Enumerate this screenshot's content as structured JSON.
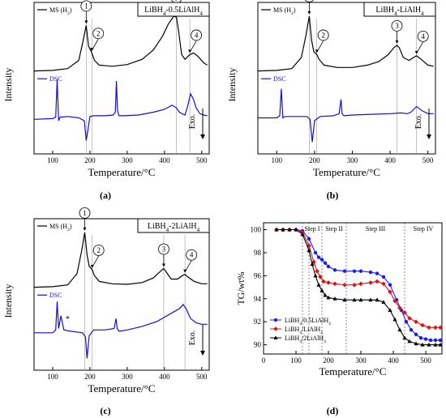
{
  "chart_data": [
    {
      "type": "line",
      "panel": "(a)",
      "title": "LiBH4-0.5LiAlH4",
      "xlabel": "Temperature/°C",
      "ylabel": "Intensity",
      "xlim": [
        50,
        520
      ],
      "xticks": [
        100,
        200,
        300,
        400,
        500
      ],
      "series": [
        {
          "name": "MS (H2)",
          "color": "#000000",
          "x": [
            50,
            100,
            140,
            170,
            182,
            190,
            196,
            205,
            212,
            225,
            260,
            300,
            340,
            370,
            395,
            410,
            425,
            432,
            438,
            446,
            455,
            468,
            478,
            490,
            505,
            515
          ],
          "y": [
            0.02,
            0.03,
            0.06,
            0.2,
            0.55,
            0.8,
            0.45,
            0.33,
            0.2,
            0.12,
            0.1,
            0.13,
            0.22,
            0.38,
            0.62,
            0.82,
            0.96,
            0.94,
            0.7,
            0.3,
            0.22,
            0.3,
            0.33,
            0.27,
            0.16,
            0.12
          ]
        },
        {
          "name": "DSC",
          "color": "#1010d0",
          "x": [
            50,
            100,
            108,
            112,
            116,
            120,
            140,
            170,
            185,
            190,
            195,
            200,
            210,
            240,
            262,
            268,
            271,
            274,
            278,
            290,
            330,
            370,
            400,
            420,
            432,
            440,
            455,
            462,
            470,
            478,
            485,
            495,
            505,
            515
          ],
          "y": [
            0.42,
            0.43,
            0.45,
            0.98,
            0.4,
            0.45,
            0.46,
            0.44,
            0.4,
            0.12,
            0.28,
            0.46,
            0.47,
            0.47,
            0.48,
            0.52,
            0.96,
            0.55,
            0.47,
            0.47,
            0.48,
            0.52,
            0.56,
            0.62,
            0.58,
            0.52,
            0.48,
            0.6,
            0.78,
            0.7,
            0.58,
            0.5,
            0.48,
            0.47
          ]
        }
      ],
      "peak_labels": [
        {
          "label": "1",
          "x": 190
        },
        {
          "label": "2",
          "x": 205
        },
        {
          "label": "3",
          "x": 432
        },
        {
          "label": "4",
          "x": 468
        }
      ],
      "exo_label": "Exo."
    },
    {
      "type": "line",
      "panel": "(b)",
      "title": "LiBH4-LiAlH4",
      "xlabel": "Temperature/°C",
      "ylabel": "Intensity",
      "xlim": [
        50,
        520
      ],
      "xticks": [
        100,
        200,
        300,
        400,
        500
      ],
      "series": [
        {
          "name": "MS (H2)",
          "color": "#000000",
          "x": [
            50,
            100,
            140,
            165,
            178,
            186,
            192,
            198,
            206,
            212,
            225,
            260,
            300,
            340,
            370,
            395,
            410,
            418,
            424,
            435,
            450,
            462,
            470,
            482,
            500,
            515
          ],
          "y": [
            0.02,
            0.03,
            0.06,
            0.25,
            0.65,
            0.96,
            0.55,
            0.35,
            0.3,
            0.22,
            0.12,
            0.08,
            0.08,
            0.12,
            0.18,
            0.3,
            0.42,
            0.46,
            0.42,
            0.25,
            0.2,
            0.25,
            0.28,
            0.22,
            0.12,
            0.1
          ]
        },
        {
          "name": "DSC",
          "color": "#1010d0",
          "x": [
            50,
            100,
            108,
            112,
            116,
            122,
            150,
            180,
            188,
            194,
            200,
            215,
            250,
            265,
            270,
            273,
            278,
            300,
            350,
            400,
            430,
            445,
            455,
            470,
            485,
            500,
            515
          ],
          "y": [
            0.44,
            0.44,
            0.47,
            0.85,
            0.44,
            0.46,
            0.46,
            0.46,
            0.42,
            0.1,
            0.4,
            0.46,
            0.47,
            0.5,
            0.7,
            0.5,
            0.47,
            0.48,
            0.49,
            0.5,
            0.51,
            0.5,
            0.52,
            0.6,
            0.54,
            0.5,
            0.5
          ]
        }
      ],
      "peak_labels": [
        {
          "label": "1",
          "x": 186
        },
        {
          "label": "2",
          "x": 206
        },
        {
          "label": "3",
          "x": 418
        },
        {
          "label": "4",
          "x": 470
        }
      ],
      "exo_label": "Exo."
    },
    {
      "type": "line",
      "panel": "(c)",
      "title": "LiBH4-2LiAlH4",
      "xlabel": "Temperature/°C",
      "ylabel": "Intensity",
      "xlim": [
        50,
        520
      ],
      "xticks": [
        100,
        200,
        300,
        400,
        500
      ],
      "series": [
        {
          "name": "MS (H2)",
          "color": "#000000",
          "x": [
            50,
            100,
            140,
            165,
            178,
            186,
            192,
            198,
            206,
            212,
            225,
            260,
            300,
            340,
            370,
            390,
            398,
            405,
            418,
            435,
            448,
            455,
            462,
            480,
            500,
            515
          ],
          "y": [
            0.02,
            0.03,
            0.06,
            0.25,
            0.65,
            0.96,
            0.58,
            0.38,
            0.32,
            0.22,
            0.12,
            0.08,
            0.07,
            0.1,
            0.18,
            0.3,
            0.34,
            0.28,
            0.16,
            0.16,
            0.22,
            0.24,
            0.2,
            0.12,
            0.08,
            0.08
          ]
        },
        {
          "name": "DSC",
          "color": "#1010d0",
          "x": [
            50,
            100,
            108,
            112,
            116,
            122,
            130,
            150,
            180,
            188,
            192,
            198,
            210,
            240,
            265,
            270,
            273,
            278,
            300,
            340,
            380,
            400,
            420,
            440,
            450,
            458,
            470,
            485,
            500,
            515
          ],
          "y": [
            0.46,
            0.46,
            0.5,
            0.9,
            0.52,
            0.7,
            0.5,
            0.48,
            0.46,
            0.4,
            0.1,
            0.42,
            0.5,
            0.5,
            0.52,
            0.66,
            0.52,
            0.48,
            0.5,
            0.55,
            0.62,
            0.68,
            0.74,
            0.8,
            0.86,
            0.8,
            0.66,
            0.6,
            0.58,
            0.58
          ]
        }
      ],
      "peak_labels": [
        {
          "label": "1",
          "x": 186
        },
        {
          "label": "2",
          "x": 206
        },
        {
          "label": "3",
          "x": 398
        },
        {
          "label": "4",
          "x": 455
        }
      ],
      "asterisk": {
        "label": "*",
        "x": 140
      },
      "exo_label": "Exo."
    },
    {
      "type": "scatter",
      "panel": "(d)",
      "title": "",
      "xlabel": "Temperature/°C",
      "ylabel": "TG/wt%",
      "xlim": [
        0,
        550
      ],
      "ylim": [
        89.2,
        100.6
      ],
      "xticks": [
        0,
        100,
        200,
        300,
        400,
        500
      ],
      "yticks": [
        90,
        92,
        94,
        96,
        98,
        100
      ],
      "steps": [
        {
          "label": "Step I",
          "x_start": 120,
          "x_end": 180
        },
        {
          "label": "Step II",
          "x_start": 180,
          "x_end": 255
        },
        {
          "label": "Step III",
          "x_start": 255,
          "x_end": 435
        },
        {
          "label": "Step IV",
          "x_start": 435,
          "x_end": 550
        }
      ],
      "step_lines": [
        120,
        140,
        180,
        255,
        435
      ],
      "series": [
        {
          "name": "LiBH4/0.5LiAlH4",
          "color": "#1a1aff",
          "marker": "circle",
          "x": [
            40,
            60,
            80,
            100,
            120,
            140,
            160,
            170,
            180,
            190,
            200,
            220,
            250,
            280,
            300,
            330,
            350,
            370,
            390,
            410,
            425,
            440,
            455,
            470,
            485,
            500,
            515,
            530,
            545
          ],
          "y": [
            100.0,
            100.0,
            100.0,
            100.0,
            99.9,
            99.2,
            98.0,
            97.6,
            97.4,
            97.1,
            96.8,
            96.5,
            96.4,
            96.4,
            96.4,
            96.3,
            96.2,
            95.9,
            95.2,
            93.9,
            93.0,
            92.0,
            91.3,
            90.9,
            90.6,
            90.5,
            90.4,
            90.4,
            90.4
          ]
        },
        {
          "name": "LiBH4/LiAlH4",
          "color": "#e01010",
          "marker": "diamond",
          "x": [
            40,
            60,
            80,
            100,
            120,
            140,
            155,
            165,
            175,
            185,
            200,
            220,
            250,
            280,
            300,
            330,
            350,
            370,
            390,
            405,
            420,
            435,
            450,
            470,
            490,
            510,
            530,
            545
          ],
          "y": [
            100.0,
            100.0,
            100.0,
            100.0,
            99.8,
            98.6,
            97.2,
            96.4,
            95.9,
            95.5,
            95.4,
            95.3,
            95.2,
            95.2,
            95.3,
            95.4,
            95.5,
            95.3,
            94.6,
            93.8,
            93.2,
            92.8,
            92.3,
            92.0,
            91.7,
            91.5,
            91.5,
            91.5
          ]
        },
        {
          "name": "LiBH4/2LiAlH4",
          "color": "#000000",
          "marker": "triangle",
          "x": [
            40,
            60,
            80,
            100,
            120,
            140,
            150,
            160,
            170,
            180,
            190,
            200,
            220,
            250,
            280,
            300,
            330,
            350,
            370,
            390,
            405,
            420,
            435,
            450,
            470,
            490,
            510,
            530,
            545
          ],
          "y": [
            100.0,
            100.0,
            100.0,
            100.0,
            99.6,
            98.2,
            97.0,
            96.0,
            95.2,
            94.7,
            94.3,
            94.1,
            94.0,
            93.9,
            93.9,
            93.9,
            93.9,
            93.9,
            93.7,
            93.0,
            92.2,
            91.3,
            90.6,
            90.3,
            90.1,
            90.0,
            90.0,
            90.0,
            90.0
          ]
        }
      ]
    }
  ],
  "captions": [
    "(a)",
    "(b)",
    "(c)",
    "(d)"
  ]
}
